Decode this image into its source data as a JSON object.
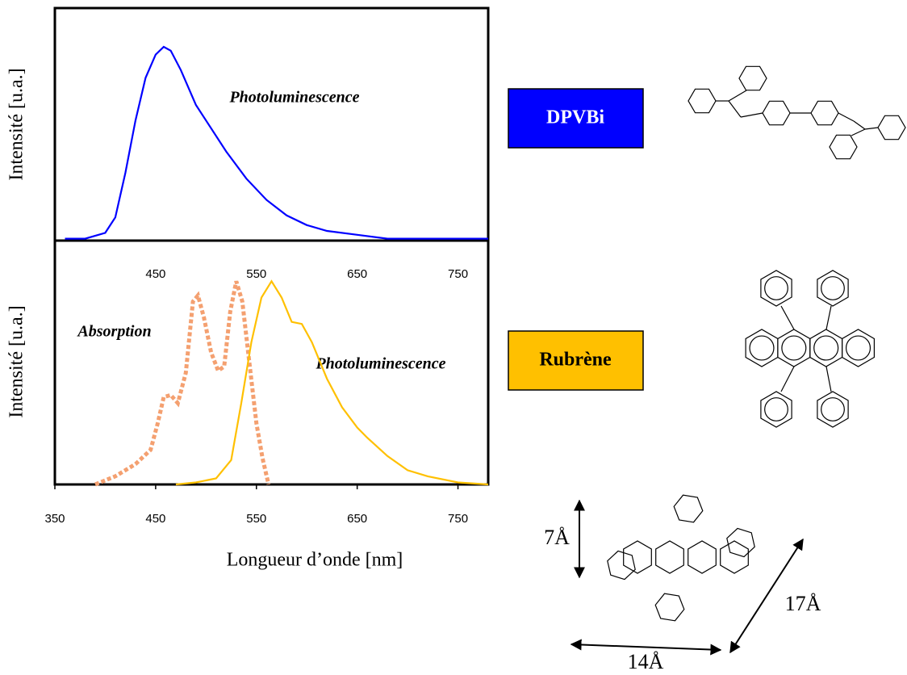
{
  "chart_data": [
    {
      "type": "line",
      "ylabel": "Intensité [u.a.]",
      "xlim": [
        350,
        780
      ],
      "ylim": [
        0,
        1.2
      ],
      "xticks": [
        450,
        550,
        650,
        750
      ],
      "series": [
        {
          "name": "Photoluminescence",
          "color": "#0000ff",
          "style": "solid",
          "x": [
            360,
            380,
            400,
            410,
            420,
            430,
            440,
            450,
            458,
            465,
            475,
            490,
            500,
            520,
            540,
            560,
            580,
            600,
            620,
            650,
            680,
            720,
            780
          ],
          "values": [
            0.01,
            0.01,
            0.04,
            0.12,
            0.35,
            0.62,
            0.84,
            0.96,
            1.0,
            0.98,
            0.88,
            0.7,
            0.62,
            0.46,
            0.32,
            0.21,
            0.13,
            0.08,
            0.05,
            0.03,
            0.01,
            0.01,
            0.01
          ]
        }
      ]
    },
    {
      "type": "line",
      "ylabel": "Intensité [u.a.]",
      "xlabel": "Longueur d’onde [nm]",
      "xlim": [
        350,
        780
      ],
      "ylim": [
        0,
        1.2
      ],
      "xticks": [
        350,
        450,
        550,
        650,
        750
      ],
      "series": [
        {
          "name": "Absorption",
          "color": "#f4a070",
          "style": "dotted",
          "x": [
            390,
            410,
            430,
            445,
            452,
            458,
            465,
            472,
            480,
            487,
            492,
            498,
            505,
            512,
            518,
            524,
            530,
            536,
            543,
            550,
            556,
            562
          ],
          "values": [
            0,
            0.04,
            0.1,
            0.17,
            0.3,
            0.43,
            0.44,
            0.4,
            0.55,
            0.9,
            0.93,
            0.82,
            0.65,
            0.56,
            0.58,
            0.85,
            1.0,
            0.9,
            0.6,
            0.3,
            0.13,
            0
          ]
        },
        {
          "name": "Photoluminescence",
          "color": "#ffc000",
          "style": "solid",
          "x": [
            470,
            490,
            500,
            510,
            525,
            535,
            545,
            555,
            565,
            575,
            585,
            595,
            605,
            620,
            635,
            650,
            660,
            680,
            700,
            720,
            750,
            780
          ],
          "values": [
            0,
            0.01,
            0.02,
            0.03,
            0.12,
            0.4,
            0.7,
            0.92,
            1.0,
            0.92,
            0.8,
            0.79,
            0.7,
            0.52,
            0.38,
            0.28,
            0.23,
            0.14,
            0.07,
            0.04,
            0.01,
            0
          ]
        }
      ]
    }
  ],
  "compounds": [
    {
      "name": "DPVBi",
      "color": "#0000ff",
      "text_color": "#ffffff"
    },
    {
      "name": "Rubrène",
      "color": "#ffc000",
      "text_color": "#000000"
    }
  ],
  "dimensions": [
    "7Å",
    "17Å",
    "14Å"
  ]
}
